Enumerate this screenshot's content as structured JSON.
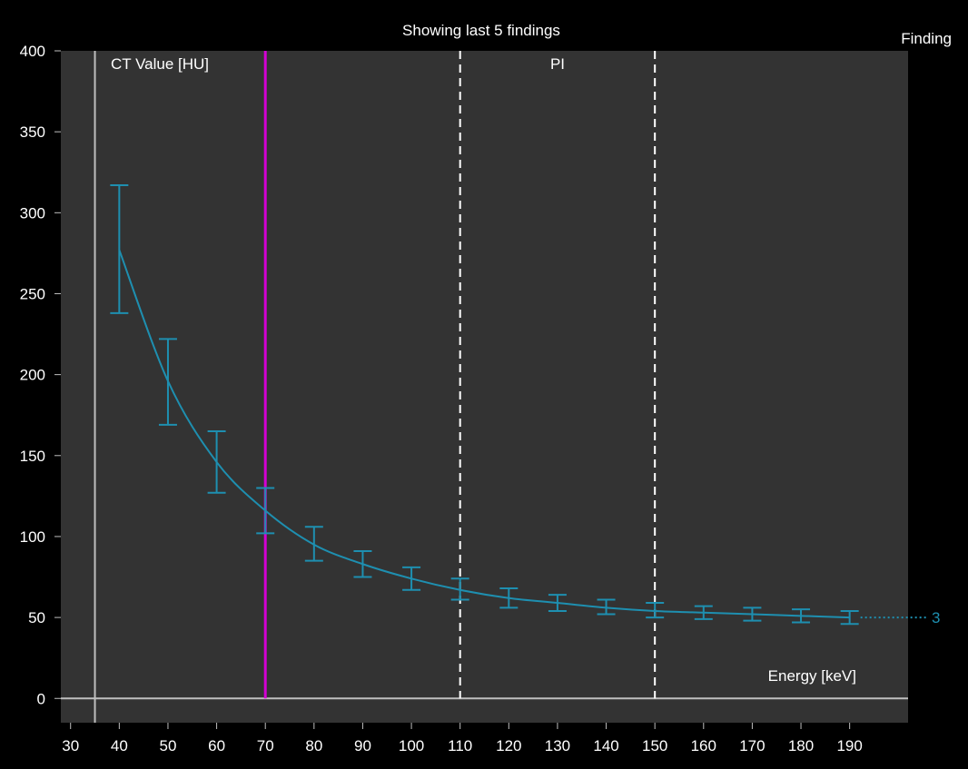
{
  "chart_data": {
    "type": "line",
    "title": "Showing last 5 findings",
    "legend_title": "Finding",
    "ylabel": "CT Value [HU]",
    "xlabel": "Energy [keV]",
    "xlim": [
      28,
      202
    ],
    "ylim": [
      -15,
      400
    ],
    "x_ticks": [
      30,
      40,
      50,
      60,
      70,
      80,
      90,
      100,
      110,
      120,
      130,
      140,
      150,
      160,
      170,
      180,
      190
    ],
    "y_ticks": [
      0,
      50,
      100,
      150,
      200,
      250,
      300,
      350,
      400
    ],
    "y_axis_at_x": 35,
    "selected_energy": 70,
    "range_markers": {
      "label": "PI",
      "x": [
        110,
        150
      ]
    },
    "series": [
      {
        "name": "3",
        "color": "#1e8fb0",
        "x": [
          40,
          50,
          60,
          70,
          80,
          90,
          100,
          110,
          120,
          130,
          140,
          150,
          160,
          170,
          180,
          190
        ],
        "y": [
          277,
          196,
          146,
          116,
          95,
          83,
          74,
          67,
          62,
          59,
          56,
          54,
          53,
          52,
          51,
          50
        ],
        "err_low": [
          238,
          169,
          127,
          102,
          85,
          75,
          67,
          61,
          56,
          54,
          52,
          50,
          49,
          48,
          47,
          46
        ],
        "err_high": [
          317,
          222,
          165,
          130,
          106,
          91,
          81,
          74,
          68,
          64,
          61,
          59,
          57,
          56,
          55,
          54
        ]
      }
    ],
    "colors": {
      "plot_bg": "#333333",
      "page_bg": "#000000",
      "axis": "#bfbfbf",
      "selected": "#d400d4"
    }
  }
}
